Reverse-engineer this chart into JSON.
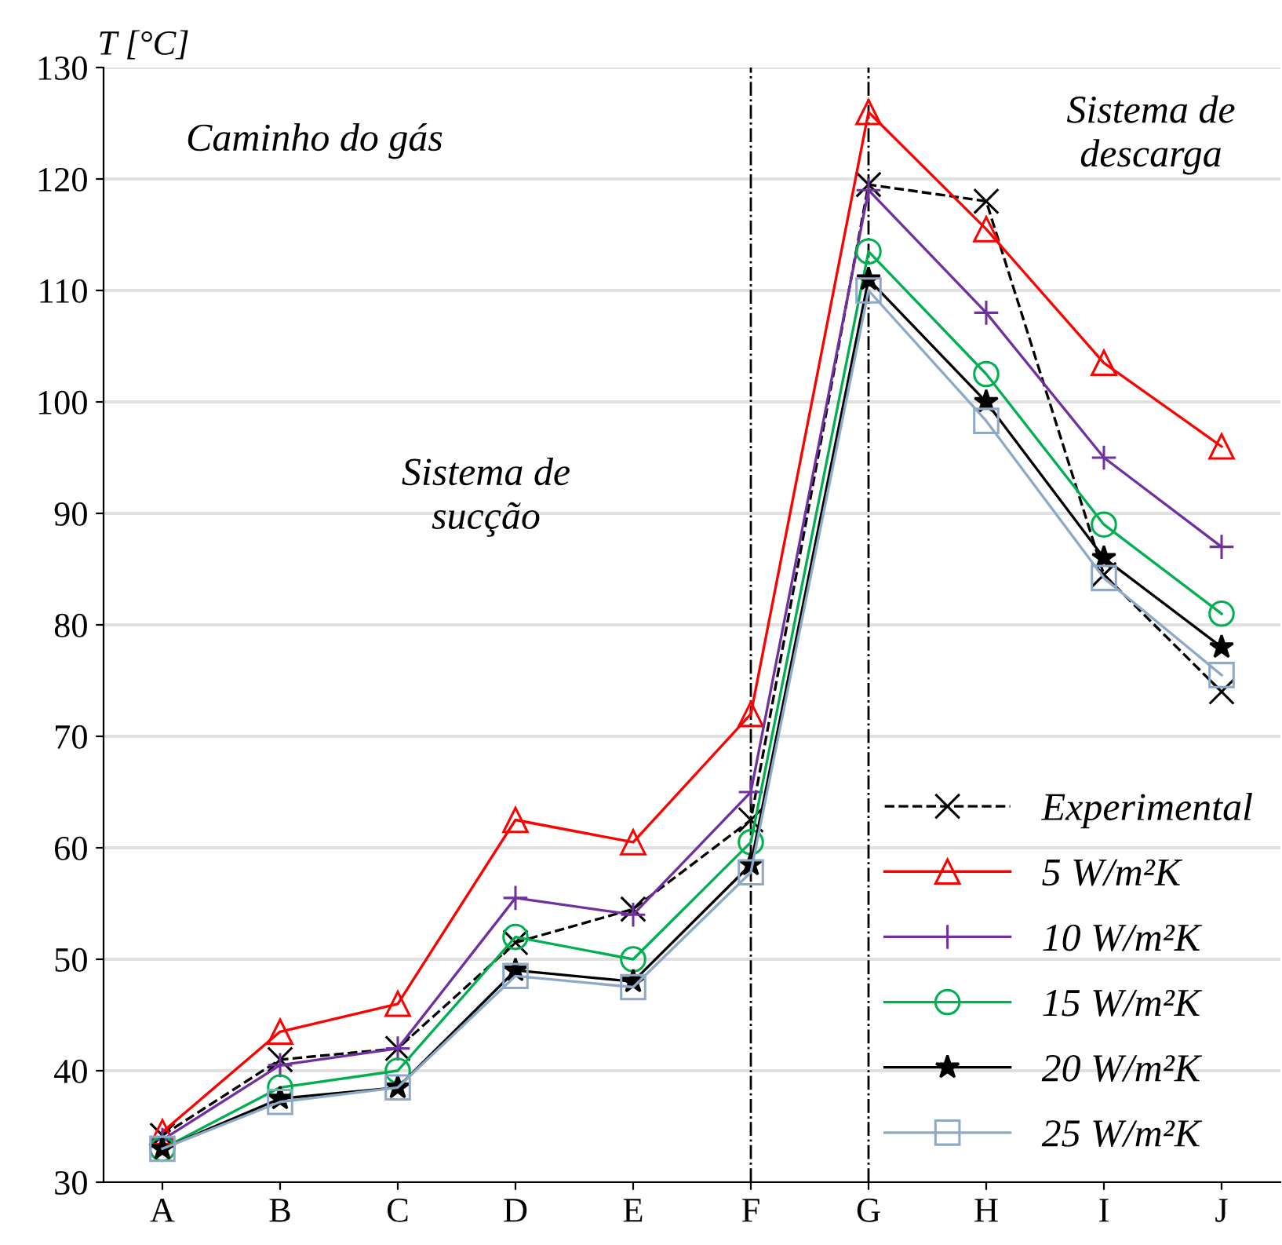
{
  "chart_data": {
    "type": "line",
    "ylabel": "T [°C]",
    "categories": [
      "A",
      "B",
      "C",
      "D",
      "E",
      "F",
      "G",
      "H",
      "I",
      "J"
    ],
    "series": [
      {
        "name": "Experimental",
        "color": "#000000",
        "marker": "cross",
        "line_style": "dashed",
        "values": [
          34.2,
          41,
          42,
          51.5,
          54.5,
          62.5,
          119.5,
          118,
          84.5,
          74
        ]
      },
      {
        "name": "5 W/m²K",
        "color": "#ff0000",
        "marker": "triangle",
        "line_style": "solid",
        "values": [
          34.5,
          43.5,
          46,
          62.5,
          60.5,
          72,
          126,
          115.5,
          103.5,
          96
        ]
      },
      {
        "name": "10 W/m²K",
        "color": "#7030a0",
        "marker": "plus",
        "line_style": "solid",
        "values": [
          33.8,
          40.5,
          42,
          55.5,
          54,
          65,
          119,
          108,
          95,
          87
        ]
      },
      {
        "name": "15 W/m²K",
        "color": "#00b050",
        "marker": "circle",
        "line_style": "solid",
        "values": [
          33,
          38.5,
          40,
          52,
          50,
          60.5,
          113.5,
          102.5,
          89,
          81
        ]
      },
      {
        "name": "20 W/m²K",
        "color": "#000000",
        "marker": "star",
        "line_style": "solid",
        "values": [
          33,
          37.5,
          38.5,
          49,
          48,
          58.5,
          111,
          100,
          86,
          78
        ]
      },
      {
        "name": "25 W/m²K",
        "color": "#8ea9c8",
        "marker": "square",
        "line_style": "solid",
        "values": [
          33,
          37.2,
          38.5,
          48.5,
          47.5,
          57.8,
          110,
          98.3,
          84.2,
          75.5
        ]
      }
    ],
    "ylim": [
      30,
      130
    ],
    "yticks": [
      30,
      40,
      50,
      60,
      70,
      80,
      90,
      100,
      110,
      120,
      130
    ],
    "grid": "y",
    "legend": "bottom right",
    "ref_lines": [
      {
        "axis": "x",
        "value": "F",
        "color": "#000000",
        "line_style": "dashdot"
      },
      {
        "axis": "x",
        "value": "G",
        "color": "#000000",
        "line_style": "dashdot"
      }
    ],
    "annotations": [
      "Caminho do gás",
      "Sistema de\nsucção",
      "Sistema de\ndescarga"
    ]
  }
}
